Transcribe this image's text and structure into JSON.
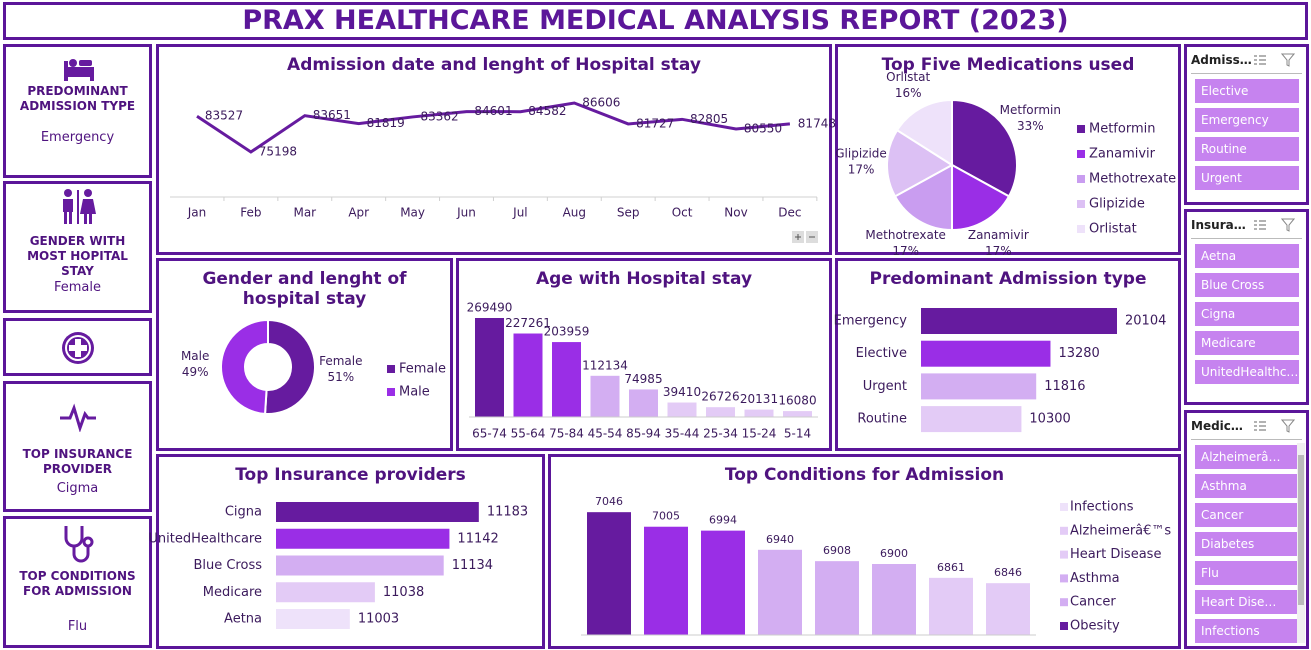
{
  "header": {
    "title": "PRAX HEALTHCARE MEDICAL ANALYSIS REPORT (2023)"
  },
  "kpis": [
    {
      "title": "PREDOMINANT ADMISSION TYPE",
      "value": "Emergency"
    },
    {
      "title": "GENDER WITH MOST HOPITAL STAY",
      "value": "Female"
    },
    {
      "title": "TOP INSURANCE PROVIDER",
      "value": "Cigma"
    },
    {
      "title": "TOP CONDITIONS FOR ADMISSION",
      "value": "Flu"
    }
  ],
  "chart_data": [
    {
      "type": "line",
      "title": "Admission date and lenght of Hospital stay",
      "categories": [
        "Jan",
        "Feb",
        "Mar",
        "Apr",
        "May",
        "Jun",
        "Jul",
        "Aug",
        "Sep",
        "Oct",
        "Nov",
        "Dec"
      ],
      "values": [
        83527,
        75198,
        83651,
        81819,
        83362,
        84601,
        84582,
        86606,
        81727,
        82805,
        80550,
        81748
      ],
      "color": "#661b9f"
    },
    {
      "type": "pie",
      "title": "Top Five Medications used",
      "categories": [
        "Metformin",
        "Zanamivir",
        "Methotrexate",
        "Glipizide",
        "Orlistat"
      ],
      "values": [
        33,
        17,
        17,
        17,
        16
      ],
      "value_labels": [
        "33%",
        "17%",
        "17%",
        "17%",
        "16%"
      ],
      "colors": [
        "#661b9f",
        "#9a2ee6",
        "#c99df0",
        "#dcc0f4",
        "#eee2fa"
      ],
      "legend": "right"
    },
    {
      "type": "donut",
      "title": "Gender and lenght of hospital stay",
      "categories": [
        "Female",
        "Male"
      ],
      "values": [
        51,
        49
      ],
      "value_labels": [
        "51%",
        "49%"
      ],
      "colors": [
        "#661b9f",
        "#9a2ee6"
      ],
      "legend": "right"
    },
    {
      "type": "bar",
      "title": "Age with Hospital stay",
      "categories": [
        "65-74",
        "55-64",
        "75-84",
        "45-54",
        "85-94",
        "35-44",
        "25-34",
        "15-24",
        "5-14"
      ],
      "values": [
        269490,
        227261,
        203959,
        112134,
        74985,
        39410,
        26726,
        20131,
        16080
      ],
      "colors": [
        "#661b9f",
        "#9a2ee6",
        "#9a2ee6",
        "#d3aef2",
        "#d3aef2",
        "#e3cbf6",
        "#e3cbf6",
        "#e3cbf6",
        "#e3cbf6"
      ]
    },
    {
      "type": "hbar",
      "title": "Predominant Admission type",
      "categories": [
        "Emergency",
        "Elective",
        "Urgent",
        "Routine"
      ],
      "values": [
        20104,
        13280,
        11816,
        10300
      ],
      "colors": [
        "#661b9f",
        "#9a2ee6",
        "#d3aef2",
        "#e3cbf6"
      ]
    },
    {
      "type": "hbar",
      "title": "Top Insurance providers",
      "categories": [
        "Cigna",
        "UnitedHealthcare",
        "Blue Cross",
        "Medicare",
        "Aetna"
      ],
      "values": [
        11183,
        11142,
        11134,
        11038,
        11003
      ],
      "colors": [
        "#661b9f",
        "#9a2ee6",
        "#d3aef2",
        "#e3cbf6",
        "#eee2fa"
      ],
      "xlim": [
        10900,
        11200
      ]
    },
    {
      "type": "bar",
      "title": "Top Conditions for Admission",
      "categories": [
        null,
        null,
        null,
        null,
        null,
        null,
        null,
        null
      ],
      "values": [
        7046,
        7005,
        6994,
        6940,
        6908,
        6900,
        6861,
        6846
      ],
      "colors": [
        "#661b9f",
        "#9a2ee6",
        "#9a2ee6",
        "#d3aef2",
        "#d3aef2",
        "#d3aef2",
        "#e3cbf6",
        "#e3cbf6"
      ],
      "ylim": [
        6700,
        7100
      ],
      "legend_entries": [
        {
          "name": "Infections",
          "color": "#eee2fa"
        },
        {
          "name": "Alzheimerâ€™s",
          "color": "#e3cbf6"
        },
        {
          "name": "Heart Disease",
          "color": "#e3cbf6"
        },
        {
          "name": "Asthma",
          "color": "#d3aef2"
        },
        {
          "name": "Cancer",
          "color": "#d3aef2"
        },
        {
          "name": "Obesity",
          "color": "#661b9f"
        }
      ]
    }
  ],
  "slicers": [
    {
      "title": "Admiss…",
      "items": [
        "Elective",
        "Emergency",
        "Routine",
        "Urgent"
      ]
    },
    {
      "title": "Insura…",
      "items": [
        "Aetna",
        "Blue Cross",
        "Cigna",
        "Medicare",
        "UnitedHealthc…"
      ]
    },
    {
      "title": "Medic…",
      "items": [
        "Alzheimerâ…",
        "Asthma",
        "Cancer",
        "Diabetes",
        "Flu",
        "Heart Dise…",
        "Infections"
      ]
    }
  ]
}
